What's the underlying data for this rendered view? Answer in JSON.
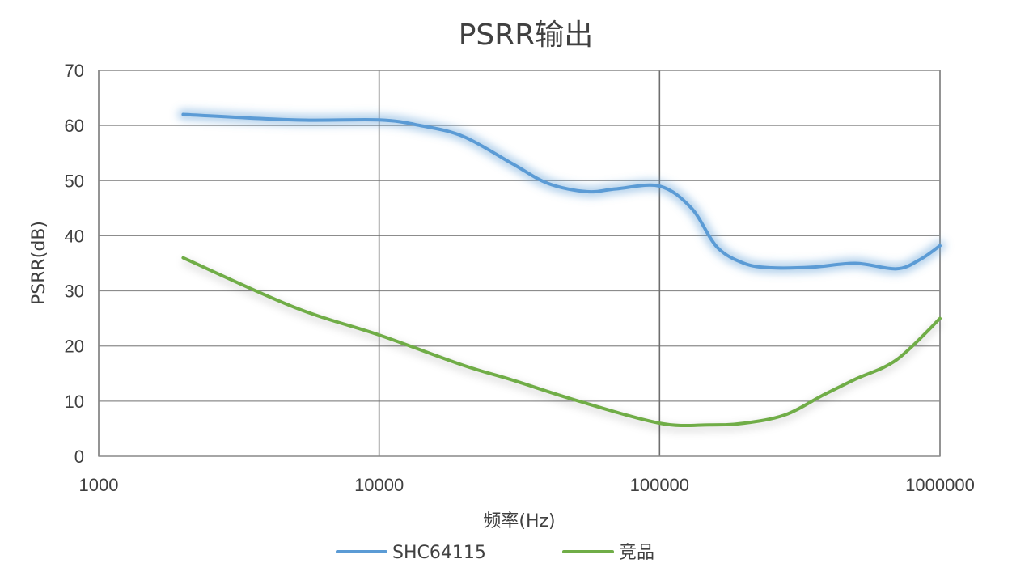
{
  "chart_data": {
    "type": "line",
    "title": "PSRR输出",
    "xlabel": "频率(Hz)",
    "ylabel": "PSRR(dB)",
    "x_scale": "log",
    "xlim": [
      1000,
      1000000
    ],
    "ylim": [
      0,
      70
    ],
    "x_ticks": [
      "1000",
      "10000",
      "100000",
      "1000000"
    ],
    "y_ticks": [
      "0",
      "10",
      "20",
      "30",
      "40",
      "50",
      "60",
      "70"
    ],
    "grid": true,
    "legend": "bottom",
    "series": [
      {
        "name": "SHC64115",
        "color": "#5b9bd5",
        "glow": true,
        "points": [
          [
            2000,
            62
          ],
          [
            5000,
            61
          ],
          [
            10000,
            61
          ],
          [
            14000,
            60
          ],
          [
            20000,
            58
          ],
          [
            30000,
            53
          ],
          [
            40000,
            49.5
          ],
          [
            55000,
            48
          ],
          [
            70000,
            48.5
          ],
          [
            100000,
            49
          ],
          [
            130000,
            45
          ],
          [
            160000,
            38
          ],
          [
            200000,
            35
          ],
          [
            250000,
            34.2
          ],
          [
            350000,
            34.3
          ],
          [
            500000,
            35
          ],
          [
            700000,
            34
          ],
          [
            850000,
            35.7
          ],
          [
            1000000,
            38.2
          ]
        ]
      },
      {
        "name": "竞品",
        "color": "#70ad47",
        "glow": false,
        "points": [
          [
            2000,
            36
          ],
          [
            5000,
            27
          ],
          [
            10000,
            22
          ],
          [
            20000,
            16.5
          ],
          [
            30000,
            13.8
          ],
          [
            50000,
            10.2
          ],
          [
            100000,
            6
          ],
          [
            150000,
            5.7
          ],
          [
            200000,
            6
          ],
          [
            280000,
            7.5
          ],
          [
            380000,
            11
          ],
          [
            500000,
            14
          ],
          [
            700000,
            17.5
          ],
          [
            1000000,
            25
          ]
        ]
      }
    ]
  }
}
